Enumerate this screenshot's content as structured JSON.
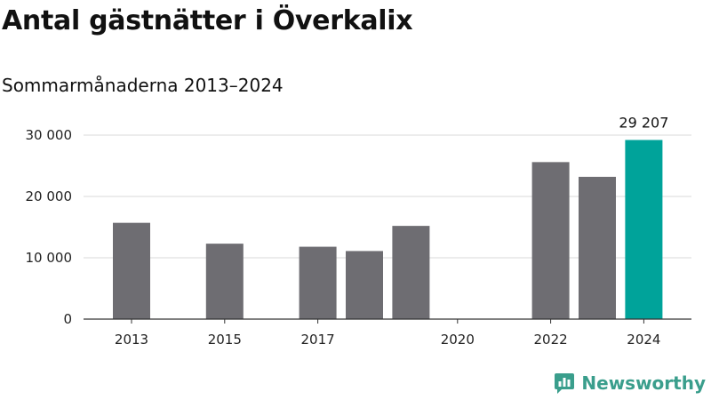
{
  "header": {
    "title": "Antal gästnätter i Överkalix",
    "subtitle": "Sommarmånaderna 2013–2024"
  },
  "brand": {
    "name": "Newsworthy",
    "color": "#3a9e8c"
  },
  "colors": {
    "bar": "#6e6d72",
    "highlight": "#00a39a",
    "grid": "#d9d9d9",
    "axis": "#333333"
  },
  "chart_data": {
    "type": "bar",
    "title": "Antal gästnätter i Överkalix",
    "subtitle": "Sommarmånaderna 2013–2024",
    "xlabel": "",
    "ylabel": "",
    "categories": [
      2013,
      2014,
      2015,
      2016,
      2017,
      2018,
      2019,
      2020,
      2021,
      2022,
      2023,
      2024
    ],
    "values": [
      15700,
      null,
      12300,
      null,
      11800,
      11100,
      15200,
      null,
      null,
      25600,
      23200,
      29207
    ],
    "x_tick_labels": [
      "2013",
      "2015",
      "2017",
      "2020",
      "2022",
      "2024"
    ],
    "y_ticks": [
      0,
      10000,
      20000,
      30000
    ],
    "y_tick_labels": [
      "0",
      "10 000",
      "20 000",
      "30 000"
    ],
    "ylim": [
      0,
      32000
    ],
    "highlight_category": 2024,
    "data_labels": [
      {
        "category": 2024,
        "text": "29 207"
      }
    ],
    "grid": true,
    "legend": "none"
  }
}
